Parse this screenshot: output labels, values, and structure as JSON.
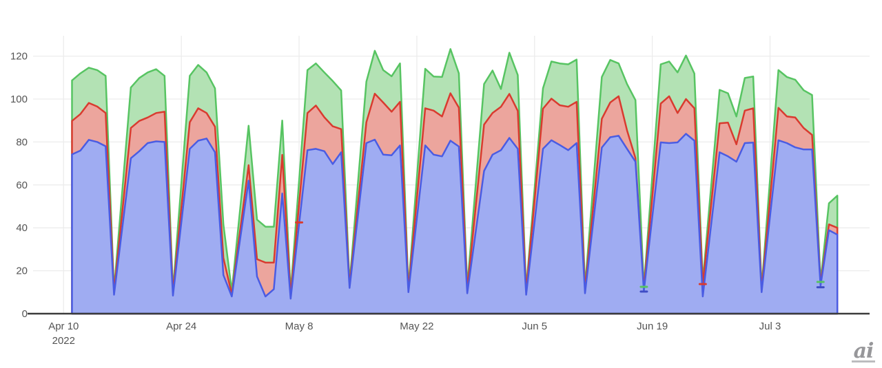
{
  "page": {
    "background": "#ffffff"
  },
  "watermark": {
    "text": "ai"
  },
  "chart_data": {
    "type": "area",
    "mode": "overlay-daily-timeseries",
    "title": "",
    "xlabel": "",
    "ylabel": "",
    "legend": "none",
    "grid": true,
    "ylim": [
      0,
      130
    ],
    "y_ticks": [
      0,
      20,
      40,
      60,
      80,
      100,
      120
    ],
    "x_start": "2022-04-10",
    "x_ticks": [
      {
        "label": "Apr 10",
        "sublabel": "2022",
        "date": "2022-04-10"
      },
      {
        "label": "Apr 24",
        "sublabel": "",
        "date": "2022-04-24"
      },
      {
        "label": "May 8",
        "sublabel": "",
        "date": "2022-05-08"
      },
      {
        "label": "May 22",
        "sublabel": "",
        "date": "2022-05-22"
      },
      {
        "label": "Jun 5",
        "sublabel": "",
        "date": "2022-06-05"
      },
      {
        "label": "Jun 19",
        "sublabel": "",
        "date": "2022-06-19"
      },
      {
        "label": "Jul 3",
        "sublabel": "",
        "date": "2022-07-03"
      }
    ],
    "dates": [
      "2022-04-11",
      "2022-04-12",
      "2022-04-13",
      "2022-04-14",
      "2022-04-15",
      "2022-04-16",
      "2022-04-18",
      "2022-04-19",
      "2022-04-20",
      "2022-04-21",
      "2022-04-22",
      "2022-04-23",
      "2022-04-25",
      "2022-04-26",
      "2022-04-27",
      "2022-04-28",
      "2022-04-29",
      "2022-04-30",
      "2022-05-02",
      "2022-05-03",
      "2022-05-04",
      "2022-05-05",
      "2022-05-06",
      "2022-05-07",
      "2022-05-09",
      "2022-05-10",
      "2022-05-11",
      "2022-05-12",
      "2022-05-13",
      "2022-05-14",
      "2022-05-16",
      "2022-05-17",
      "2022-05-18",
      "2022-05-19",
      "2022-05-20",
      "2022-05-21",
      "2022-05-23",
      "2022-05-24",
      "2022-05-25",
      "2022-05-26",
      "2022-05-27",
      "2022-05-28",
      "2022-05-30",
      "2022-05-31",
      "2022-06-01",
      "2022-06-02",
      "2022-06-03",
      "2022-06-04",
      "2022-06-06",
      "2022-06-07",
      "2022-06-08",
      "2022-06-09",
      "2022-06-10",
      "2022-06-11",
      "2022-06-13",
      "2022-06-14",
      "2022-06-15",
      "2022-06-16",
      "2022-06-17",
      "2022-06-18",
      "2022-06-20",
      "2022-06-21",
      "2022-06-22",
      "2022-06-23",
      "2022-06-24",
      "2022-06-25",
      "2022-06-27",
      "2022-06-28",
      "2022-06-29",
      "2022-06-30",
      "2022-07-01",
      "2022-07-02",
      "2022-07-04",
      "2022-07-05",
      "2022-07-06",
      "2022-07-07",
      "2022-07-08",
      "2022-07-09",
      "2022-07-10",
      "2022-07-11"
    ],
    "series": [
      {
        "name": "green-series",
        "line_color": "#57c462",
        "fill_color": "#b3e2b4",
        "values": [
          108.7,
          112,
          114.6,
          113.5,
          110.8,
          11,
          105.4,
          109.8,
          112.4,
          113.9,
          110.8,
          10.7,
          110.8,
          115.9,
          112.4,
          105,
          41.6,
          10.5,
          87.6,
          43.8,
          40.5,
          40.5,
          90,
          10,
          113.5,
          116.6,
          112.4,
          108.4,
          104,
          14,
          108.1,
          122.5,
          113.5,
          110.6,
          116.6,
          12,
          114.1,
          110.5,
          110.3,
          123.3,
          112,
          12.5,
          107,
          113.3,
          104.7,
          121.6,
          111.2,
          11.5,
          105,
          117.5,
          116.6,
          116.2,
          118.4,
          12.3,
          110.3,
          118.2,
          116.6,
          107,
          99.5,
          12.5,
          116.2,
          117.5,
          112.4,
          120.3,
          111.9,
          15,
          104.3,
          102.7,
          91.9,
          109.8,
          110.5,
          12,
          113.5,
          110.3,
          109,
          104.1,
          101.9,
          15,
          51.4,
          55
        ]
      },
      {
        "name": "red-series",
        "line_color": "#d93b2f",
        "fill_color": "#eca59d",
        "values": [
          89.8,
          93,
          98.2,
          96.5,
          93.5,
          10,
          86.5,
          89.8,
          91.4,
          93.5,
          94.1,
          9.7,
          89.2,
          95.7,
          93.5,
          87.1,
          26,
          9,
          69.2,
          25.4,
          23.8,
          23.8,
          74,
          8.5,
          93.5,
          97,
          91.5,
          87.3,
          86,
          13,
          89.2,
          102.5,
          98.4,
          94.1,
          98.7,
          11,
          95.7,
          94.6,
          91.9,
          102.7,
          96,
          11,
          88.1,
          93.5,
          96.4,
          102.4,
          94.5,
          10.3,
          95.5,
          100.2,
          97.1,
          96.4,
          98.7,
          11,
          90.8,
          98.4,
          101.3,
          85.4,
          72.5,
          11.5,
          97.9,
          101.3,
          93.5,
          100,
          95.7,
          13.5,
          88.7,
          89,
          78.9,
          94.6,
          95.7,
          11,
          95.9,
          91.9,
          91.4,
          86.5,
          83.3,
          14,
          41.6,
          40
        ]
      },
      {
        "name": "blue-series",
        "line_color": "#4a5ce3",
        "fill_color": "#9facf2",
        "values": [
          74.2,
          76,
          81,
          80,
          78,
          8.8,
          72.4,
          75.7,
          79.5,
          80.3,
          80,
          8.4,
          76.8,
          80.6,
          81.6,
          75.2,
          18,
          8,
          62,
          17.3,
          8,
          11.4,
          56,
          7,
          76.2,
          76.8,
          75.7,
          69.7,
          75.2,
          12,
          79.5,
          81.1,
          74.1,
          73.8,
          78.4,
          10,
          78.4,
          74.1,
          73.3,
          80.6,
          77.9,
          9.5,
          66.5,
          74.1,
          76.2,
          81.9,
          76.8,
          8.8,
          76.8,
          80.8,
          78.6,
          76.2,
          79.5,
          9.5,
          77.4,
          82.2,
          82.9,
          76.8,
          70.8,
          10.5,
          79.8,
          79.5,
          79.8,
          83.8,
          80.6,
          8,
          75.2,
          73.3,
          70.8,
          79.5,
          79.7,
          10,
          80.8,
          79.5,
          77.5,
          76.5,
          76.5,
          13,
          38.9,
          36.8
        ]
      }
    ],
    "markers": [
      {
        "date": "2022-05-08",
        "value": 42.5,
        "color": "#d93b2f"
      },
      {
        "date": "2022-06-18",
        "value": 12.5,
        "color": "#57c462"
      },
      {
        "date": "2022-06-18",
        "value": 10.3,
        "color": "#3f4cc4"
      },
      {
        "date": "2022-06-25",
        "value": 13.8,
        "color": "#d93b2f"
      },
      {
        "date": "2022-07-09",
        "value": 14.8,
        "color": "#57c462"
      },
      {
        "date": "2022-07-09",
        "value": 12.3,
        "color": "#3f4cc4"
      }
    ],
    "colors": {
      "grid": "#ececec",
      "axis": "#3b3b3b",
      "tick_label": "#545454"
    }
  }
}
